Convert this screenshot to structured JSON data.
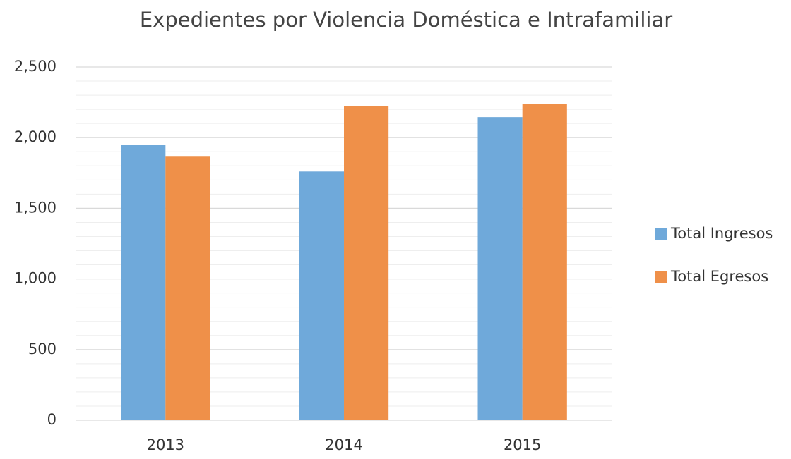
{
  "chart_data": {
    "type": "bar",
    "title": "Expedientes por Violencia Doméstica e Intrafamiliar",
    "categories": [
      "2013",
      "2014",
      "2015"
    ],
    "series": [
      {
        "name": "Total Ingresos",
        "color": "#6fa9da",
        "values": [
          1950,
          1760,
          2145
        ]
      },
      {
        "name": "Total Egresos",
        "color": "#ef9049",
        "values": [
          1870,
          2225,
          2240
        ]
      }
    ],
    "ylim": [
      0,
      2500
    ],
    "yticks": [
      0,
      500,
      {
        "value": 1000,
        "label": "1,000"
      },
      {
        "value": 1500,
        "label": "1,500"
      },
      {
        "value": 2000,
        "label": "2,000"
      },
      {
        "value": 2500,
        "label": "2,500"
      }
    ],
    "minor_yticks": [
      100,
      200,
      300,
      400,
      600,
      700,
      800,
      900,
      1100,
      1200,
      1300,
      1400,
      1600,
      1700,
      1800,
      1900,
      2100,
      2200,
      2300,
      2400
    ],
    "grid": true,
    "legend": "right"
  }
}
